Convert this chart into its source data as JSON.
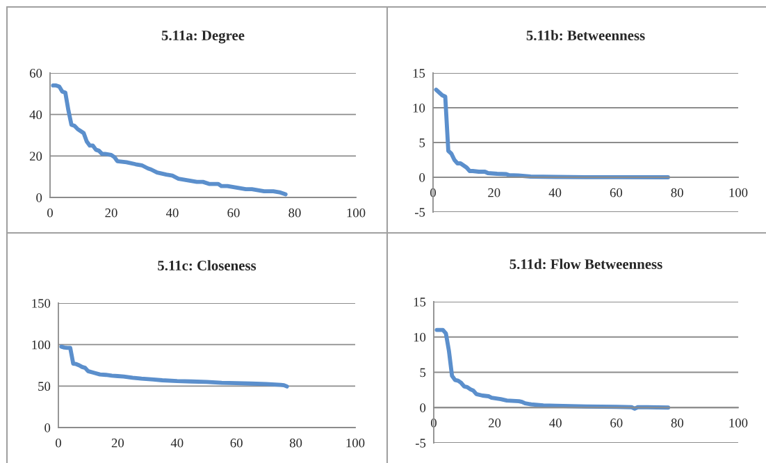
{
  "chart_data": [
    {
      "type": "line",
      "title": "5.11a: Degree",
      "xlim": [
        0,
        100
      ],
      "xticks": [
        0,
        20,
        40,
        60,
        80,
        100
      ],
      "ylim": [
        0,
        60
      ],
      "yticks": [
        0,
        20,
        40,
        60
      ],
      "grid": "y",
      "x": [
        1,
        2,
        3,
        4,
        5,
        6,
        7,
        8,
        9,
        10,
        11,
        12,
        13,
        14,
        15,
        16,
        17,
        18,
        20,
        21,
        22,
        25,
        28,
        30,
        32,
        33,
        35,
        38,
        40,
        42,
        44,
        46,
        48,
        50,
        52,
        55,
        56,
        58,
        60,
        62,
        64,
        66,
        68,
        70,
        73,
        75,
        77
      ],
      "series": [
        {
          "color": "#5b8fcc",
          "values": [
            54,
            54,
            53.5,
            51,
            50.5,
            42,
            35,
            34.5,
            33,
            32,
            31,
            27,
            25,
            25,
            23,
            22.5,
            21,
            21,
            20.5,
            19.5,
            17.5,
            17,
            16,
            15.5,
            14,
            13.5,
            12,
            11,
            10.5,
            9,
            8.5,
            8,
            7.5,
            7.5,
            6.5,
            6.5,
            5.5,
            5.5,
            5,
            4.5,
            4,
            4,
            3.5,
            3,
            3,
            2.5,
            1.5
          ]
        }
      ]
    },
    {
      "type": "line",
      "title": "5.11b: Betweenness",
      "xlim": [
        0,
        100
      ],
      "xticks": [
        0,
        20,
        40,
        60,
        80,
        100
      ],
      "ylim": [
        -5,
        15
      ],
      "yticks": [
        -5,
        0,
        5,
        10,
        15
      ],
      "grid": "y",
      "x": [
        1,
        2,
        3,
        4,
        5,
        6,
        7,
        8,
        9,
        10,
        11,
        12,
        13,
        15,
        17,
        18,
        21,
        24,
        25,
        28,
        32,
        40,
        50,
        60,
        77
      ],
      "series": [
        {
          "color": "#5b8fcc",
          "values": [
            12.6,
            12.2,
            11.8,
            11.6,
            3.8,
            3.4,
            2.5,
            2.0,
            2.0,
            1.7,
            1.4,
            0.9,
            0.9,
            0.8,
            0.8,
            0.6,
            0.5,
            0.45,
            0.3,
            0.25,
            0.1,
            0.05,
            0.02,
            0.01,
            0
          ]
        }
      ]
    },
    {
      "type": "line",
      "title": "5.11c: Closeness",
      "xlim": [
        0,
        100
      ],
      "xticks": [
        0,
        20,
        40,
        60,
        80,
        100
      ],
      "ylim": [
        0,
        150
      ],
      "yticks": [
        0,
        50,
        100,
        150
      ],
      "grid": "y",
      "x": [
        1,
        2,
        3,
        4,
        5,
        6,
        7,
        8,
        9,
        10,
        12,
        14,
        16,
        18,
        20,
        22,
        25,
        28,
        32,
        35,
        40,
        45,
        50,
        55,
        60,
        65,
        70,
        75,
        76,
        77
      ],
      "series": [
        {
          "color": "#5b8fcc",
          "values": [
            97.5,
            96.5,
            96,
            96,
            77,
            76.5,
            75,
            73,
            72,
            68,
            66,
            64,
            63.5,
            62.5,
            62,
            61.5,
            60,
            59,
            58,
            57,
            56,
            55.5,
            55,
            54,
            53.5,
            53,
            52.5,
            51.5,
            51,
            49.5
          ]
        }
      ]
    },
    {
      "type": "line",
      "title": "5.11d: Flow Betweenness",
      "xlim": [
        0,
        100
      ],
      "xticks": [
        0,
        20,
        40,
        60,
        80,
        100
      ],
      "ylim": [
        -5,
        15
      ],
      "yticks": [
        -5,
        0,
        5,
        10,
        15
      ],
      "grid": "y",
      "x": [
        1,
        2,
        3,
        4,
        5,
        6,
        7,
        8,
        9,
        10,
        11,
        12,
        13,
        14,
        16,
        18,
        19,
        22,
        24,
        28,
        29,
        30,
        32,
        36,
        40,
        50,
        60,
        65,
        66,
        67,
        70,
        77
      ],
      "series": [
        {
          "color": "#5b8fcc",
          "values": [
            11,
            11,
            11,
            10.5,
            8,
            4.5,
            3.9,
            3.8,
            3.5,
            3,
            2.9,
            2.6,
            2.4,
            1.9,
            1.7,
            1.6,
            1.4,
            1.2,
            1.0,
            0.9,
            0.8,
            0.6,
            0.45,
            0.3,
            0.25,
            0.15,
            0.1,
            0.05,
            -0.15,
            0.05,
            0.05,
            0
          ]
        }
      ]
    }
  ]
}
